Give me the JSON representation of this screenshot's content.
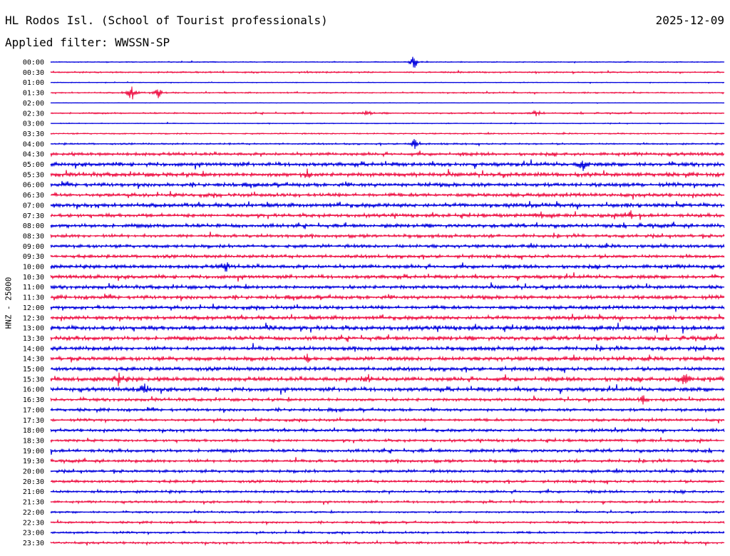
{
  "header": {
    "station": "HL Rodos Isl. (School of Tourist professionals)",
    "date": "2025-12-09",
    "filter": "Applied filter: WWSSN-SP"
  },
  "chart_data": {
    "type": "line",
    "ylabel": "HNZ - 25000",
    "row_labels": [
      "00:00",
      "00:30",
      "01:00",
      "01:30",
      "02:00",
      "02:30",
      "03:00",
      "03:30",
      "04:00",
      "04:30",
      "05:00",
      "05:30",
      "06:00",
      "06:30",
      "07:00",
      "07:30",
      "08:00",
      "08:30",
      "09:00",
      "09:30",
      "10:00",
      "10:30",
      "11:00",
      "11:30",
      "12:00",
      "12:30",
      "13:00",
      "13:30",
      "14:00",
      "14:30",
      "15:00",
      "15:30",
      "16:00",
      "16:30",
      "17:00",
      "17:30",
      "18:00",
      "18:30",
      "19:00",
      "19:30",
      "20:00",
      "20:30",
      "21:00",
      "21:30",
      "22:00",
      "22:30",
      "23:00",
      "23:30"
    ],
    "series_colors": [
      "#0000dd",
      "#ee1144"
    ],
    "noise_level": [
      0.6,
      1.0,
      0.5,
      0.9,
      0.3,
      1.0,
      0.6,
      0.9,
      1.1,
      2.2,
      2.6,
      2.8,
      2.7,
      2.5,
      2.8,
      2.4,
      2.6,
      2.2,
      2.3,
      2.2,
      2.6,
      2.4,
      2.4,
      2.6,
      2.4,
      2.6,
      3.0,
      2.9,
      2.8,
      2.9,
      2.6,
      3.0,
      2.7,
      2.0,
      2.0,
      1.8,
      2.0,
      1.8,
      2.2,
      2.0,
      2.0,
      1.8,
      1.8,
      1.5,
      1.2,
      1.4,
      1.4,
      1.5
    ],
    "events": [
      {
        "row": 0,
        "x": 0.54,
        "amp": 12
      },
      {
        "row": 3,
        "x": 0.12,
        "amp": 14
      },
      {
        "row": 3,
        "x": 0.16,
        "amp": 8
      },
      {
        "row": 5,
        "x": 0.47,
        "amp": 5
      },
      {
        "row": 5,
        "x": 0.72,
        "amp": 6
      },
      {
        "row": 8,
        "x": 0.54,
        "amp": 8
      },
      {
        "row": 10,
        "x": 0.79,
        "amp": 10
      },
      {
        "row": 11,
        "x": 0.38,
        "amp": 6
      },
      {
        "row": 15,
        "x": 0.73,
        "amp": 7
      },
      {
        "row": 15,
        "x": 0.86,
        "amp": 8
      },
      {
        "row": 20,
        "x": 0.26,
        "amp": 7
      },
      {
        "row": 26,
        "x": 0.32,
        "amp": 8
      },
      {
        "row": 29,
        "x": 0.38,
        "amp": 8
      },
      {
        "row": 31,
        "x": 0.1,
        "amp": 10
      },
      {
        "row": 31,
        "x": 0.47,
        "amp": 9
      },
      {
        "row": 31,
        "x": 0.94,
        "amp": 14
      },
      {
        "row": 32,
        "x": 0.14,
        "amp": 8
      },
      {
        "row": 33,
        "x": 0.88,
        "amp": 6
      }
    ]
  }
}
